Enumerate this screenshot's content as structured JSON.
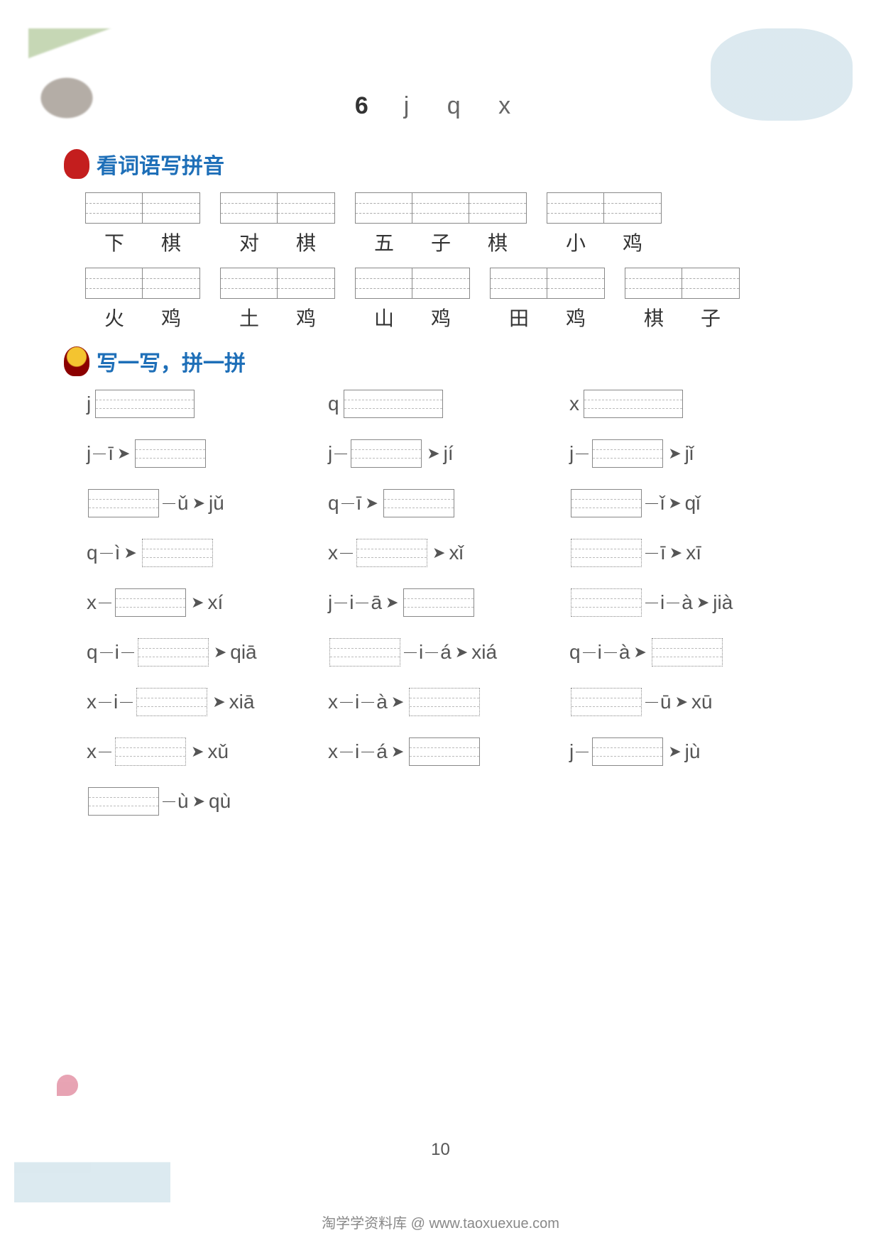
{
  "page": {
    "title_num": "6",
    "title_letters": "j  q  x",
    "page_number": "10",
    "footer": "淘学学资料库 @ www.taoxuexue.com"
  },
  "section1": {
    "title": "看词语写拼音",
    "row1": [
      {
        "chars": [
          "下",
          "棋"
        ]
      },
      {
        "chars": [
          "对",
          "棋"
        ]
      },
      {
        "chars": [
          "五",
          "子",
          "棋"
        ]
      },
      {
        "chars": [
          "小",
          "鸡"
        ]
      }
    ],
    "row2": [
      {
        "chars": [
          "火",
          "鸡"
        ]
      },
      {
        "chars": [
          "土",
          "鸡"
        ]
      },
      {
        "chars": [
          "山",
          "鸡"
        ]
      },
      {
        "chars": [
          "田",
          "鸡"
        ]
      },
      {
        "chars": [
          "棋",
          "子"
        ]
      }
    ]
  },
  "section2": {
    "title": "写一写，拼一拼",
    "rows": [
      [
        {
          "parts": [
            {
              "t": "txt",
              "v": "j"
            },
            {
              "t": "box",
              "wide": true
            }
          ]
        },
        {
          "parts": [
            {
              "t": "txt",
              "v": "q"
            },
            {
              "t": "box",
              "wide": true
            }
          ]
        },
        {
          "parts": [
            {
              "t": "txt",
              "v": "x"
            },
            {
              "t": "box",
              "wide": true
            }
          ]
        }
      ],
      [
        {
          "parts": [
            {
              "t": "txt",
              "v": "j"
            },
            {
              "t": "dash"
            },
            {
              "t": "txt",
              "v": "ī"
            },
            {
              "t": "arr"
            },
            {
              "t": "box"
            }
          ]
        },
        {
          "parts": [
            {
              "t": "txt",
              "v": "j"
            },
            {
              "t": "dash"
            },
            {
              "t": "box"
            },
            {
              "t": "arr"
            },
            {
              "t": "txt",
              "v": "jí"
            }
          ]
        },
        {
          "parts": [
            {
              "t": "txt",
              "v": "j"
            },
            {
              "t": "dash"
            },
            {
              "t": "box"
            },
            {
              "t": "arr"
            },
            {
              "t": "txt",
              "v": "jǐ"
            }
          ]
        }
      ],
      [
        {
          "parts": [
            {
              "t": "box"
            },
            {
              "t": "dash"
            },
            {
              "t": "txt",
              "v": "ǔ"
            },
            {
              "t": "arr"
            },
            {
              "t": "txt",
              "v": "jǔ"
            }
          ]
        },
        {
          "parts": [
            {
              "t": "txt",
              "v": "q"
            },
            {
              "t": "dash"
            },
            {
              "t": "txt",
              "v": "ī"
            },
            {
              "t": "arr"
            },
            {
              "t": "box"
            }
          ]
        },
        {
          "parts": [
            {
              "t": "box"
            },
            {
              "t": "dash"
            },
            {
              "t": "txt",
              "v": "ǐ"
            },
            {
              "t": "arr"
            },
            {
              "t": "txt",
              "v": "qǐ"
            }
          ]
        }
      ],
      [
        {
          "parts": [
            {
              "t": "txt",
              "v": "q"
            },
            {
              "t": "dash"
            },
            {
              "t": "txt",
              "v": "ì"
            },
            {
              "t": "arr"
            },
            {
              "t": "box",
              "dotted": true
            }
          ]
        },
        {
          "parts": [
            {
              "t": "txt",
              "v": "x"
            },
            {
              "t": "dash"
            },
            {
              "t": "box",
              "dotted": true
            },
            {
              "t": "arr"
            },
            {
              "t": "txt",
              "v": "xǐ"
            }
          ]
        },
        {
          "parts": [
            {
              "t": "box",
              "dotted": true
            },
            {
              "t": "dash"
            },
            {
              "t": "txt",
              "v": "ī"
            },
            {
              "t": "arr"
            },
            {
              "t": "txt",
              "v": "xī"
            }
          ]
        }
      ],
      [
        {
          "parts": [
            {
              "t": "txt",
              "v": "x"
            },
            {
              "t": "dash"
            },
            {
              "t": "box"
            },
            {
              "t": "arr"
            },
            {
              "t": "txt",
              "v": "xí"
            }
          ]
        },
        {
          "parts": [
            {
              "t": "txt",
              "v": "j"
            },
            {
              "t": "dash"
            },
            {
              "t": "txt",
              "v": "i"
            },
            {
              "t": "dash"
            },
            {
              "t": "txt",
              "v": "ā"
            },
            {
              "t": "arr"
            },
            {
              "t": "box"
            }
          ]
        },
        {
          "parts": [
            {
              "t": "box",
              "dotted": true
            },
            {
              "t": "dash"
            },
            {
              "t": "txt",
              "v": "i"
            },
            {
              "t": "dash"
            },
            {
              "t": "txt",
              "v": "à"
            },
            {
              "t": "arr"
            },
            {
              "t": "txt",
              "v": "jià"
            }
          ]
        }
      ],
      [
        {
          "parts": [
            {
              "t": "txt",
              "v": "q"
            },
            {
              "t": "dash"
            },
            {
              "t": "txt",
              "v": "i"
            },
            {
              "t": "dash"
            },
            {
              "t": "box",
              "dotted": true
            },
            {
              "t": "arr"
            },
            {
              "t": "txt",
              "v": "qiā"
            }
          ]
        },
        {
          "parts": [
            {
              "t": "box",
              "dotted": true
            },
            {
              "t": "dash"
            },
            {
              "t": "txt",
              "v": "i"
            },
            {
              "t": "dash"
            },
            {
              "t": "txt",
              "v": "á"
            },
            {
              "t": "arr"
            },
            {
              "t": "txt",
              "v": "xiá"
            }
          ]
        },
        {
          "parts": [
            {
              "t": "txt",
              "v": "q"
            },
            {
              "t": "dash"
            },
            {
              "t": "txt",
              "v": "i"
            },
            {
              "t": "dash"
            },
            {
              "t": "txt",
              "v": "à"
            },
            {
              "t": "arr"
            },
            {
              "t": "box",
              "dotted": true
            }
          ]
        }
      ],
      [
        {
          "parts": [
            {
              "t": "txt",
              "v": "x"
            },
            {
              "t": "dash"
            },
            {
              "t": "txt",
              "v": "i"
            },
            {
              "t": "dash"
            },
            {
              "t": "box",
              "dotted": true
            },
            {
              "t": "arr"
            },
            {
              "t": "txt",
              "v": "xiā"
            }
          ]
        },
        {
          "parts": [
            {
              "t": "txt",
              "v": "x"
            },
            {
              "t": "dash"
            },
            {
              "t": "txt",
              "v": "i"
            },
            {
              "t": "dash"
            },
            {
              "t": "txt",
              "v": "à"
            },
            {
              "t": "arr"
            },
            {
              "t": "box",
              "dotted": true
            }
          ]
        },
        {
          "parts": [
            {
              "t": "box",
              "dotted": true
            },
            {
              "t": "dash"
            },
            {
              "t": "txt",
              "v": "ū"
            },
            {
              "t": "arr"
            },
            {
              "t": "txt",
              "v": "xū"
            }
          ]
        }
      ],
      [
        {
          "parts": [
            {
              "t": "txt",
              "v": "x"
            },
            {
              "t": "dash"
            },
            {
              "t": "box",
              "dotted": true
            },
            {
              "t": "arr"
            },
            {
              "t": "txt",
              "v": "xǔ"
            }
          ]
        },
        {
          "parts": [
            {
              "t": "txt",
              "v": "x"
            },
            {
              "t": "dash"
            },
            {
              "t": "txt",
              "v": "i"
            },
            {
              "t": "dash"
            },
            {
              "t": "txt",
              "v": "á"
            },
            {
              "t": "arr"
            },
            {
              "t": "box"
            }
          ]
        },
        {
          "parts": [
            {
              "t": "txt",
              "v": "j"
            },
            {
              "t": "dash"
            },
            {
              "t": "box"
            },
            {
              "t": "arr"
            },
            {
              "t": "txt",
              "v": "jù"
            }
          ]
        }
      ],
      [
        {
          "parts": [
            {
              "t": "box"
            },
            {
              "t": "dash"
            },
            {
              "t": "txt",
              "v": "ù"
            },
            {
              "t": "arr"
            },
            {
              "t": "txt",
              "v": "qù"
            }
          ]
        }
      ]
    ]
  }
}
